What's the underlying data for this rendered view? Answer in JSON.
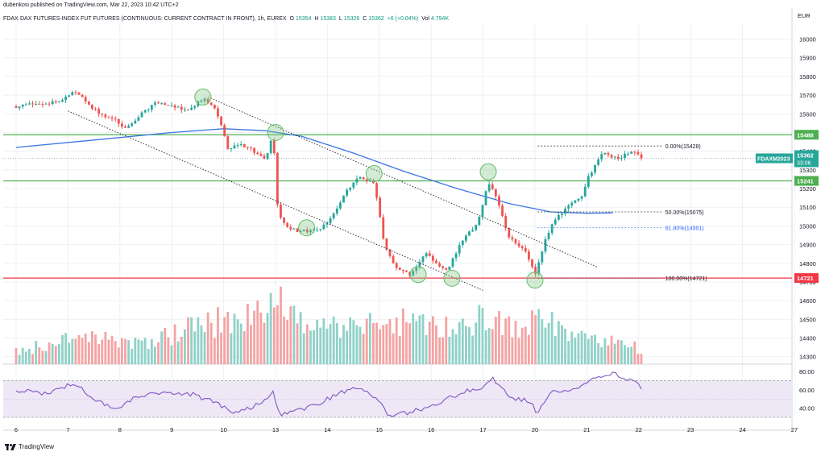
{
  "header": {
    "published": "dubenkosi published on TradingView.com, Mar 22, 2023 10:42 UTC+2",
    "symbol": "FDAX·DAX FUTURES-INDEX FUT FUTURES (CONTINUOUS: CURRENT CONTRACT IN FRONT), 1h, EUREX",
    "open_label": "O",
    "open": "15354",
    "high_label": "H",
    "high": "15383",
    "low_label": "L",
    "low": "15326",
    "close_label": "C",
    "close": "15362",
    "change": "+6 (+0.04%)",
    "volume_label": "Vol",
    "volume": "4.794K"
  },
  "branding": {
    "logo_text": "TradingView"
  },
  "colors": {
    "bull": "#26a69a",
    "bear": "#ef5350",
    "bull_vol": "#8fd1c8",
    "bear_vol": "#f4a3a3",
    "ma": "#3a75e3",
    "green_level": "#4caf50",
    "red_level": "#f23645",
    "rsi": "#7e57c2",
    "rsi_band": "#ede7f6",
    "grid": "#eef0f3"
  },
  "chart_data": [
    {
      "type": "candlestick",
      "currency": "EUR",
      "ylim": [
        14260,
        16080
      ],
      "y_ticks": [
        "14300",
        "14400",
        "14500",
        "14600",
        "14700",
        "14800",
        "14900",
        "15000",
        "15100",
        "15200",
        "15300",
        "15400",
        "15500",
        "15600",
        "15700",
        "15800",
        "15900",
        "16000"
      ],
      "x_ticks": [
        "6",
        "7",
        "8",
        "9",
        "10",
        "13",
        "14",
        "15",
        "16",
        "17",
        "20",
        "21",
        "22",
        "23",
        "24",
        "27"
      ],
      "levels": [
        {
          "value": 15488,
          "label": "15488",
          "color": "green"
        },
        {
          "value": 15241,
          "label": "15241",
          "color": "green"
        },
        {
          "value": 14721,
          "label": "14721",
          "color": "red"
        }
      ],
      "price_tag": {
        "symbol": "FDAXM2023",
        "price": "15362",
        "countdown": "33:06",
        "value": 15362
      },
      "fibonacci": [
        {
          "label": "0.00%(15428)",
          "value": 15428
        },
        {
          "label": "50.00%(15075)",
          "value": 15075
        },
        {
          "label": "61.80%(14991)",
          "value": 14991
        },
        {
          "label": "100.00%(14721)",
          "value": 14721
        }
      ],
      "swing_points": [
        15690,
        15500,
        14990,
        15280,
        15290,
        14740,
        14720,
        14710
      ],
      "moving_average_path": [
        {
          "day": 0.0,
          "value": 15420
        },
        {
          "day": 1.5,
          "value": 15460
        },
        {
          "day": 3.0,
          "value": 15500
        },
        {
          "day": 4.0,
          "value": 15520
        },
        {
          "day": 4.8,
          "value": 15510
        },
        {
          "day": 5.5,
          "value": 15480
        },
        {
          "day": 6.5,
          "value": 15390
        },
        {
          "day": 7.5,
          "value": 15290
        },
        {
          "day": 8.5,
          "value": 15200
        },
        {
          "day": 9.5,
          "value": 15120
        },
        {
          "day": 10.3,
          "value": 15075
        },
        {
          "day": 11.0,
          "value": 15068
        },
        {
          "day": 11.5,
          "value": 15070
        }
      ],
      "ohlc_path": [
        {
          "day": 0.0,
          "value": 15640
        },
        {
          "day": 0.3,
          "value": 15650
        },
        {
          "day": 0.6,
          "value": 15660
        },
        {
          "day": 0.9,
          "value": 15670
        },
        {
          "day": 1.1,
          "value": 15720
        },
        {
          "day": 1.3,
          "value": 15680
        },
        {
          "day": 1.6,
          "value": 15600
        },
        {
          "day": 1.9,
          "value": 15570
        },
        {
          "day": 2.1,
          "value": 15520
        },
        {
          "day": 2.4,
          "value": 15600
        },
        {
          "day": 2.7,
          "value": 15660
        },
        {
          "day": 3.0,
          "value": 15640
        },
        {
          "day": 3.3,
          "value": 15620
        },
        {
          "day": 3.6,
          "value": 15680
        },
        {
          "day": 3.8,
          "value": 15640
        },
        {
          "day": 3.95,
          "value": 15540
        },
        {
          "day": 4.1,
          "value": 15400
        },
        {
          "day": 4.3,
          "value": 15440
        },
        {
          "day": 4.5,
          "value": 15420
        },
        {
          "day": 4.8,
          "value": 15350
        },
        {
          "day": 4.95,
          "value": 15490
        },
        {
          "day": 5.05,
          "value": 15050
        },
        {
          "day": 5.3,
          "value": 14980
        },
        {
          "day": 5.6,
          "value": 14970
        },
        {
          "day": 5.9,
          "value": 14990
        },
        {
          "day": 6.1,
          "value": 15060
        },
        {
          "day": 6.4,
          "value": 15200
        },
        {
          "day": 6.6,
          "value": 15260
        },
        {
          "day": 6.9,
          "value": 15230
        },
        {
          "day": 7.1,
          "value": 14900
        },
        {
          "day": 7.3,
          "value": 14780
        },
        {
          "day": 7.6,
          "value": 14740
        },
        {
          "day": 7.9,
          "value": 14860
        },
        {
          "day": 8.1,
          "value": 14800
        },
        {
          "day": 8.3,
          "value": 14760
        },
        {
          "day": 8.6,
          "value": 14920
        },
        {
          "day": 8.9,
          "value": 15020
        },
        {
          "day": 9.1,
          "value": 15240
        },
        {
          "day": 9.3,
          "value": 15120
        },
        {
          "day": 9.5,
          "value": 14930
        },
        {
          "day": 9.8,
          "value": 14880
        },
        {
          "day": 10.0,
          "value": 14740
        },
        {
          "day": 10.1,
          "value": 14840
        },
        {
          "day": 10.3,
          "value": 15000
        },
        {
          "day": 10.6,
          "value": 15100
        },
        {
          "day": 10.9,
          "value": 15150
        },
        {
          "day": 11.0,
          "value": 15250
        },
        {
          "day": 11.3,
          "value": 15390
        },
        {
          "day": 11.6,
          "value": 15360
        },
        {
          "day": 11.9,
          "value": 15400
        },
        {
          "day": 12.05,
          "value": 15362
        }
      ],
      "volume_path": [
        {
          "day": 0.0,
          "value": 0.2
        },
        {
          "day": 1.5,
          "value": 0.5
        },
        {
          "day": 2.2,
          "value": 0.3
        },
        {
          "day": 4.1,
          "value": 0.75
        },
        {
          "day": 5.05,
          "value": 1.0
        },
        {
          "day": 5.6,
          "value": 0.7
        },
        {
          "day": 6.5,
          "value": 0.55
        },
        {
          "day": 7.2,
          "value": 0.7
        },
        {
          "day": 8.0,
          "value": 0.6
        },
        {
          "day": 9.2,
          "value": 0.75
        },
        {
          "day": 9.8,
          "value": 0.5
        },
        {
          "day": 10.0,
          "value": 1.0
        },
        {
          "day": 10.6,
          "value": 0.5
        },
        {
          "day": 11.5,
          "value": 0.35
        },
        {
          "day": 12.05,
          "value": 0.25
        }
      ]
    },
    {
      "type": "line",
      "ylim": [
        30,
        88
      ],
      "y_ticks": [
        "40.00",
        "60.00",
        "80.00"
      ],
      "band": [
        30,
        70
      ],
      "series": [
        {
          "values": [
            {
              "day": 0.0,
              "value": 60
            },
            {
              "day": 0.6,
              "value": 55
            },
            {
              "day": 1.1,
              "value": 68
            },
            {
              "day": 1.5,
              "value": 50
            },
            {
              "day": 1.9,
              "value": 38
            },
            {
              "day": 2.3,
              "value": 52
            },
            {
              "day": 2.8,
              "value": 58
            },
            {
              "day": 3.4,
              "value": 55
            },
            {
              "day": 3.9,
              "value": 45
            },
            {
              "day": 4.2,
              "value": 33
            },
            {
              "day": 4.6,
              "value": 42
            },
            {
              "day": 4.95,
              "value": 57
            },
            {
              "day": 5.1,
              "value": 32
            },
            {
              "day": 5.7,
              "value": 42
            },
            {
              "day": 6.3,
              "value": 58
            },
            {
              "day": 6.6,
              "value": 62
            },
            {
              "day": 7.0,
              "value": 48
            },
            {
              "day": 7.2,
              "value": 31
            },
            {
              "day": 7.6,
              "value": 36
            },
            {
              "day": 8.1,
              "value": 44
            },
            {
              "day": 8.5,
              "value": 55
            },
            {
              "day": 9.0,
              "value": 64
            },
            {
              "day": 9.2,
              "value": 72
            },
            {
              "day": 9.5,
              "value": 52
            },
            {
              "day": 9.9,
              "value": 48
            },
            {
              "day": 10.05,
              "value": 33
            },
            {
              "day": 10.3,
              "value": 58
            },
            {
              "day": 10.8,
              "value": 62
            },
            {
              "day": 11.2,
              "value": 75
            },
            {
              "day": 11.5,
              "value": 78
            },
            {
              "day": 11.8,
              "value": 72
            },
            {
              "day": 12.05,
              "value": 63
            }
          ]
        }
      ]
    }
  ]
}
